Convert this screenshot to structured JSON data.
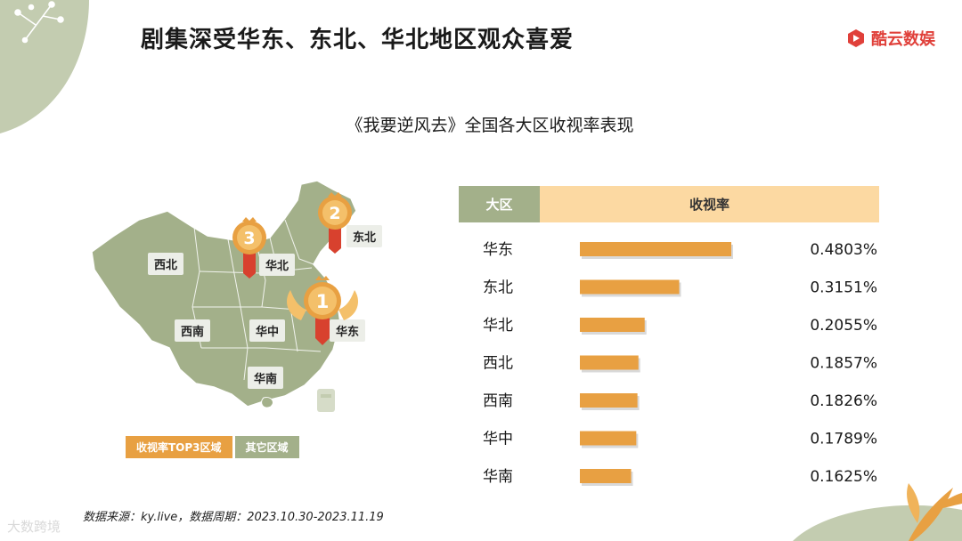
{
  "page": {
    "title": "剧集深受华东、东北、华北地区观众喜爱",
    "brand": "酷云数娱",
    "subtitle": "《我要逆风去》全国各大区收视率表现",
    "source": "数据来源：ky.live，数据周期：2023.10.30-2023.11.19",
    "watermark": "大数跨境"
  },
  "map": {
    "labels": {
      "xibei": "西北",
      "huabei": "华北",
      "dongbei": "东北",
      "xinan": "西南",
      "huazhong": "华中",
      "huadong": "华东",
      "huanan": "华南"
    },
    "ranks": {
      "first": "1",
      "second": "2",
      "third": "3"
    },
    "legend": {
      "top": "收视率TOP3区域",
      "other": "其它区域"
    }
  },
  "colors": {
    "accent": "#e8a042",
    "green": "#a3b08a",
    "header_light": "#fcd9a2",
    "brand_red": "#e0403a"
  },
  "chart_data": {
    "type": "bar",
    "orientation": "horizontal",
    "header": {
      "region": "大区",
      "rating": "收视率"
    },
    "categories": [
      "华东",
      "东北",
      "华北",
      "西北",
      "西南",
      "华中",
      "华南"
    ],
    "values": [
      0.4803,
      0.3151,
      0.2055,
      0.1857,
      0.1826,
      0.1789,
      0.1625
    ],
    "value_labels": [
      "0.4803%",
      "0.3151%",
      "0.2055%",
      "0.1857%",
      "0.1826%",
      "0.1789%",
      "0.1625%"
    ],
    "unit": "%",
    "xlim": [
      0,
      0.4803
    ]
  }
}
